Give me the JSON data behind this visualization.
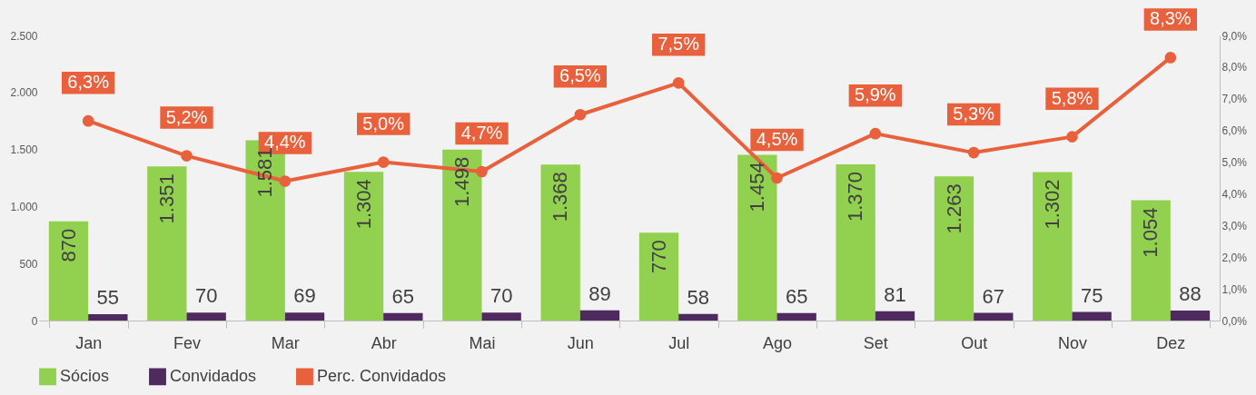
{
  "chart_data": {
    "type": "bar",
    "categories": [
      "Jan",
      "Fev",
      "Mar",
      "Abr",
      "Mai",
      "Jun",
      "Jul",
      "Ago",
      "Set",
      "Out",
      "Nov",
      "Dez"
    ],
    "series": [
      {
        "name": "Sócios",
        "type": "bar",
        "color": "#92d050",
        "values": [
          870,
          1351,
          1581,
          1304,
          1498,
          1368,
          770,
          1454,
          1370,
          1263,
          1302,
          1054
        ],
        "value_labels": [
          "870",
          "1.351",
          "1.581",
          "1.304",
          "1.498",
          "1.368",
          "770",
          "1.454",
          "1.370",
          "1.263",
          "1.302",
          "1.054"
        ]
      },
      {
        "name": "Convidados",
        "type": "bar",
        "color": "#4e2a5e",
        "values": [
          55,
          70,
          69,
          65,
          70,
          89,
          58,
          65,
          81,
          67,
          75,
          88
        ],
        "value_labels": [
          "55",
          "70",
          "69",
          "65",
          "70",
          "89",
          "58",
          "65",
          "81",
          "67",
          "75",
          "88"
        ]
      },
      {
        "name": "Perc. Convidados",
        "type": "line",
        "axis": "y2",
        "color": "#e8603c",
        "values": [
          6.3,
          5.2,
          4.4,
          5.0,
          4.7,
          6.5,
          7.5,
          4.5,
          5.9,
          5.3,
          5.8,
          8.3
        ],
        "value_labels": [
          "6,3%",
          "5,2%",
          "4,4%",
          "5,0%",
          "4,7%",
          "6,5%",
          "7,5%",
          "4,5%",
          "5,9%",
          "5,3%",
          "5,8%",
          "8,3%"
        ]
      }
    ],
    "ylim": [
      0,
      2500
    ],
    "yticks": [
      0,
      500,
      {
        "value": 1000,
        "label": "1.000"
      },
      {
        "value": 1500,
        "label": "1.500"
      },
      {
        "value": 2000,
        "label": "2.000"
      },
      {
        "value": 2500,
        "label": "2.500"
      }
    ],
    "y2lim": [
      0,
      9
    ],
    "y2ticks": [
      {
        "value": 0,
        "label": "0,0%"
      },
      {
        "value": 1,
        "label": "1,0%"
      },
      {
        "value": 2,
        "label": "2,0%"
      },
      {
        "value": 3,
        "label": "3,0%"
      },
      {
        "value": 4,
        "label": "4,0%"
      },
      {
        "value": 5,
        "label": "5,0%"
      },
      {
        "value": 6,
        "label": "6,0%"
      },
      {
        "value": 7,
        "label": "7,0%"
      },
      {
        "value": 8,
        "label": "8,0%"
      },
      {
        "value": 9,
        "label": "9,0%"
      }
    ],
    "grid": false,
    "legend": "bottom",
    "marker": "circle"
  }
}
